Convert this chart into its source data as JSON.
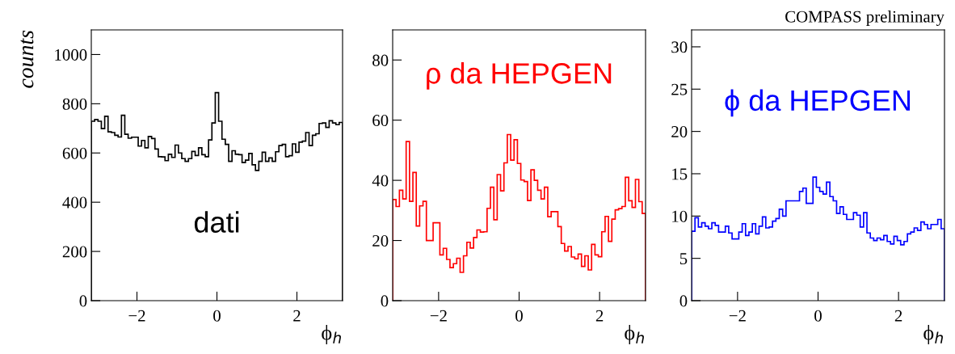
{
  "chart_data": [
    {
      "type": "histogram",
      "color": "#000000",
      "ylabel": "counts",
      "xlabel": "ϕ$_{h}$",
      "bins": [
        -3.1416,
        -3.0578,
        -2.974,
        -2.8903,
        -2.8065,
        -2.7227,
        -2.6389,
        -2.5552,
        -2.4714,
        -2.3876,
        -2.3038,
        -2.2201,
        -2.1363,
        -2.0525,
        -1.9687,
        -1.885,
        -1.8012,
        -1.7174,
        -1.6336,
        -1.5499,
        -1.4661,
        -1.3823,
        -1.2985,
        -1.2148,
        -1.131,
        -1.0472,
        -0.9634,
        -0.8796,
        -0.7959,
        -0.7121,
        -0.6283,
        -0.5445,
        -0.4608,
        -0.377,
        -0.2932,
        -0.2094,
        -0.1257,
        -0.0419,
        0.0419,
        0.1257,
        0.2094,
        0.2932,
        0.377,
        0.4608,
        0.5445,
        0.6283,
        0.7121,
        0.7959,
        0.8796,
        0.9634,
        1.0472,
        1.131,
        1.2148,
        1.2985,
        1.3823,
        1.4661,
        1.5499,
        1.6336,
        1.7174,
        1.8012,
        1.885,
        1.9687,
        2.0525,
        2.1363,
        2.2201,
        2.3038,
        2.3876,
        2.4714,
        2.5552,
        2.6389,
        2.7227,
        2.8065,
        2.8903,
        2.974,
        3.0578,
        3.1416
      ],
      "values": [
        729,
        736,
        729,
        699,
        749,
        686,
        683,
        672,
        665,
        753,
        676,
        660,
        664,
        664,
        628,
        651,
        621,
        667,
        659,
        616,
        585,
        584,
        569,
        595,
        582,
        632,
        600,
        577,
        566,
        577,
        606,
        590,
        621,
        593,
        585,
        653,
        722,
        845,
        729,
        656,
        635,
        566,
        609,
        595,
        593,
        561,
        571,
        598,
        552,
        529,
        566,
        603,
        566,
        580,
        566,
        605,
        630,
        635,
        585,
        589,
        637,
        603,
        644,
        648,
        683,
        630,
        672,
        678,
        720,
        722,
        704,
        731,
        722,
        715,
        724
      ],
      "xlim": [
        -3.1416,
        3.1416
      ],
      "xticks": [
        -2,
        0,
        2
      ],
      "ylim": [
        0,
        1100
      ],
      "yticks": [
        0,
        200,
        400,
        600,
        800,
        1000
      ],
      "annotations": [
        "dati"
      ]
    },
    {
      "type": "histogram",
      "color": "#ff0000",
      "xlabel": "ϕ$_{h}$",
      "bins": [
        -3.1416,
        -3.0578,
        -2.974,
        -2.8903,
        -2.8065,
        -2.7227,
        -2.6389,
        -2.5552,
        -2.4714,
        -2.3876,
        -2.3038,
        -2.2201,
        -2.1363,
        -2.0525,
        -1.9687,
        -1.885,
        -1.8012,
        -1.7174,
        -1.6336,
        -1.5499,
        -1.4661,
        -1.3823,
        -1.2985,
        -1.2148,
        -1.131,
        -1.0472,
        -0.9634,
        -0.8796,
        -0.7959,
        -0.7121,
        -0.6283,
        -0.5445,
        -0.4608,
        -0.377,
        -0.2932,
        -0.2094,
        -0.1257,
        -0.0419,
        0.0419,
        0.1257,
        0.2094,
        0.2932,
        0.377,
        0.4608,
        0.5445,
        0.6283,
        0.7121,
        0.7959,
        0.8796,
        0.9634,
        1.0472,
        1.131,
        1.2148,
        1.2985,
        1.3823,
        1.4661,
        1.5499,
        1.6336,
        1.7174,
        1.8012,
        1.885,
        1.9687,
        2.0525,
        2.1363,
        2.2201,
        2.3038,
        2.3876,
        2.4714,
        2.5552,
        2.6389,
        2.7227,
        2.8065,
        2.8903,
        2.974,
        3.0578,
        3.1416
      ],
      "values": [
        33.6,
        31.3,
        36.7,
        33.8,
        52.9,
        33,
        42.6,
        24.8,
        31.5,
        33,
        20,
        20,
        25.9,
        25.9,
        15.2,
        17.4,
        13.7,
        11,
        12.3,
        14.1,
        9.4,
        14.9,
        19.4,
        17.5,
        21,
        23.5,
        22.8,
        22.9,
        30.7,
        37.7,
        26.9,
        41.9,
        36.5,
        45.8,
        55.2,
        46.7,
        53.5,
        45.6,
        40.1,
        39.6,
        33.3,
        43.5,
        40,
        36.7,
        33.8,
        37.7,
        27.9,
        29.6,
        29.6,
        24.6,
        19,
        16.5,
        18,
        14.5,
        13.9,
        15.5,
        11.4,
        14.9,
        10.2,
        18.7,
        15.2,
        14.6,
        22.9,
        28,
        19.7,
        27.1,
        30.2,
        30.6,
        31.3,
        41,
        33.2,
        31,
        40.3,
        32.9,
        29
      ],
      "xlim": [
        -3.1416,
        3.1416
      ],
      "xticks": [
        -2,
        0,
        2
      ],
      "ylim": [
        0,
        90
      ],
      "yticks": [
        0,
        20,
        40,
        60,
        80
      ],
      "annotations": [
        "ρ da HEPGEN"
      ]
    },
    {
      "type": "histogram",
      "color": "#0000ff",
      "xlabel": "ϕ$_{h}$",
      "bins": [
        -3.1416,
        -3.0578,
        -2.974,
        -2.8903,
        -2.8065,
        -2.7227,
        -2.6389,
        -2.5552,
        -2.4714,
        -2.3876,
        -2.3038,
        -2.2201,
        -2.1363,
        -2.0525,
        -1.9687,
        -1.885,
        -1.8012,
        -1.7174,
        -1.6336,
        -1.5499,
        -1.4661,
        -1.3823,
        -1.2985,
        -1.2148,
        -1.131,
        -1.0472,
        -0.9634,
        -0.8796,
        -0.7959,
        -0.7121,
        -0.6283,
        -0.5445,
        -0.4608,
        -0.377,
        -0.2932,
        -0.2094,
        -0.1257,
        -0.0419,
        0.0419,
        0.1257,
        0.2094,
        0.2932,
        0.377,
        0.4608,
        0.5445,
        0.6283,
        0.7121,
        0.7959,
        0.8796,
        0.9634,
        1.0472,
        1.131,
        1.2148,
        1.2985,
        1.3823,
        1.4661,
        1.5499,
        1.6336,
        1.7174,
        1.8012,
        1.885,
        1.9687,
        2.0525,
        2.1363,
        2.2201,
        2.3038,
        2.3876,
        2.4714,
        2.5552,
        2.6389,
        2.7227,
        2.8065,
        2.8903,
        2.974,
        3.0578,
        3.1416
      ],
      "values": [
        8.2,
        9.8,
        8.7,
        9.2,
        8.8,
        8.5,
        9.2,
        8.9,
        8.1,
        8.1,
        8.8,
        8.0,
        7.3,
        7.3,
        8.1,
        9.1,
        7.7,
        8.1,
        9.1,
        7.9,
        8.8,
        9.9,
        8.6,
        8.7,
        9.4,
        9.7,
        10.8,
        10.0,
        11.8,
        11.8,
        11.8,
        11.8,
        12.9,
        13.3,
        11.5,
        11.5,
        14.6,
        13.4,
        12.9,
        12.6,
        14.0,
        12.3,
        11.8,
        10.3,
        11.1,
        10.2,
        9.6,
        9.6,
        10.4,
        10.1,
        8.7,
        10.4,
        8.0,
        7.4,
        7.1,
        7.4,
        7.2,
        7.7,
        7.0,
        6.7,
        7.6,
        7.1,
        6.6,
        7.0,
        7.9,
        8.1,
        8.6,
        8.3,
        9.3,
        9.0,
        8.5,
        9.0,
        9.0,
        9.6,
        8.5
      ],
      "xlim": [
        -3.1416,
        3.1416
      ],
      "xticks": [
        -2,
        0,
        2
      ],
      "ylim": [
        0,
        32
      ],
      "yticks": [
        0,
        5,
        10,
        15,
        20,
        25,
        30
      ],
      "annotations": [
        "ϕ da HEPGEN",
        "COMPASS preliminary"
      ]
    }
  ]
}
